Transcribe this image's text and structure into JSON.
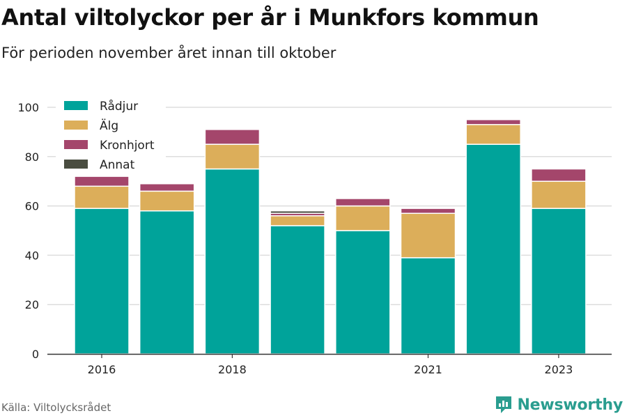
{
  "header": {
    "title": "Antal viltolyckor per år i Munkfors kommun",
    "subtitle": "För perioden november året innan till oktober"
  },
  "footer": {
    "source": "Källa: Viltolycksrådet",
    "brand": "Newsworthy",
    "brand_icon": "newsworthy-logo-icon"
  },
  "colors": {
    "Rådjur": "#00a39a",
    "Älg": "#dcae5a",
    "Kronhjort": "#a4466b",
    "Annat": "#4a4d40"
  },
  "chart_data": {
    "type": "bar",
    "stacked": true,
    "categories": [
      "2016",
      "2017",
      "2018",
      "2019",
      "2020",
      "2021",
      "2022",
      "2023"
    ],
    "x_tick_labels": [
      "2016",
      "",
      "2018",
      "",
      "",
      "2021",
      "",
      "2023"
    ],
    "series": [
      {
        "name": "Rådjur",
        "values": [
          59,
          58,
          75,
          52,
          50,
          39,
          85,
          59
        ]
      },
      {
        "name": "Älg",
        "values": [
          9,
          8,
          10,
          4,
          10,
          18,
          8,
          11
        ]
      },
      {
        "name": "Kronhjort",
        "values": [
          4,
          3,
          6,
          1,
          3,
          2,
          2,
          5
        ]
      },
      {
        "name": "Annat",
        "values": [
          0,
          0,
          0,
          1,
          0,
          0,
          0,
          0
        ]
      }
    ],
    "ylim": [
      0,
      100
    ],
    "yticks": [
      0,
      20,
      40,
      60,
      80,
      100
    ],
    "grid": true,
    "legend_position": "top-left"
  }
}
